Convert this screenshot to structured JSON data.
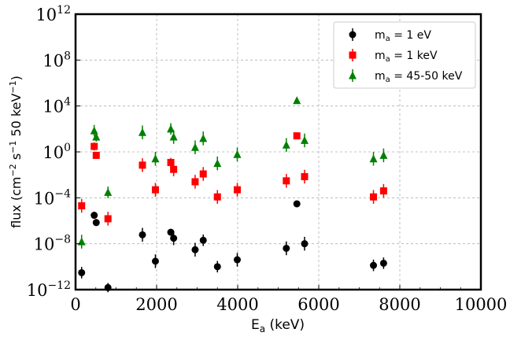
{
  "chart_data": {
    "type": "scatter",
    "title": "",
    "xlabel": "E_a (keV)",
    "ylabel": "flux (cm^-2 s^-1 50 keV^-1)",
    "x_scale": "linear",
    "y_scale": "log",
    "xlim": [
      0,
      10000
    ],
    "ylim": [
      1e-12,
      1000000000000.0
    ],
    "x_ticks": [
      "0",
      "2000",
      "4000",
      "6000",
      "8000",
      "10000"
    ],
    "y_ticks": [
      {
        "base": "10",
        "exp": "−12"
      },
      {
        "base": "10",
        "exp": "−8"
      },
      {
        "base": "10",
        "exp": "−4"
      },
      {
        "base": "10",
        "exp": "0"
      },
      {
        "base": "10",
        "exp": "4"
      },
      {
        "base": "10",
        "exp": "8"
      },
      {
        "base": "10",
        "exp": "12"
      }
    ],
    "grid": true,
    "legend_position": "top-right",
    "series": [
      {
        "name": "m_a = 1 eV",
        "label_main": "m",
        "label_sub": "a",
        "label_rest": " = 1 eV",
        "marker": "circle",
        "color": "#000000",
        "points": [
          {
            "x": 150,
            "y": 3e-11,
            "err_dex": 1.0
          },
          {
            "x": 460,
            "y": 3e-06,
            "err_dex": 0.6
          },
          {
            "x": 510,
            "y": 7e-07,
            "err_dex": 0.6
          },
          {
            "x": 800,
            "y": 1.5e-12,
            "err_dex": 0.8
          },
          {
            "x": 1650,
            "y": 6e-08,
            "err_dex": 1.2
          },
          {
            "x": 1970,
            "y": 3e-10,
            "err_dex": 1.2
          },
          {
            "x": 2350,
            "y": 1e-07,
            "err_dex": 0.6
          },
          {
            "x": 2420,
            "y": 3e-08,
            "err_dex": 1.2
          },
          {
            "x": 2950,
            "y": 3e-09,
            "err_dex": 1.2
          },
          {
            "x": 3150,
            "y": 2e-08,
            "err_dex": 1.0
          },
          {
            "x": 3500,
            "y": 1e-10,
            "err_dex": 1.0
          },
          {
            "x": 3990,
            "y": 4e-10,
            "err_dex": 1.2
          },
          {
            "x": 5200,
            "y": 4e-09,
            "err_dex": 1.2
          },
          {
            "x": 5460,
            "y": 3e-05,
            "err_dex": 0
          },
          {
            "x": 5650,
            "y": 1e-08,
            "err_dex": 1.2
          },
          {
            "x": 7350,
            "y": 1.3e-10,
            "err_dex": 1.0
          },
          {
            "x": 7600,
            "y": 2e-10,
            "err_dex": 1.0
          }
        ]
      },
      {
        "name": "m_a = 1 keV",
        "label_main": "m",
        "label_sub": "a",
        "label_rest": " = 1 keV",
        "marker": "square",
        "color": "#ff0000",
        "points": [
          {
            "x": 150,
            "y": 2e-05,
            "err_dex": 1.2
          },
          {
            "x": 460,
            "y": 3,
            "err_dex": 0.7
          },
          {
            "x": 510,
            "y": 0.5,
            "err_dex": 0.6
          },
          {
            "x": 800,
            "y": 1.5e-06,
            "err_dex": 1.2
          },
          {
            "x": 1650,
            "y": 0.07,
            "err_dex": 1.2
          },
          {
            "x": 1970,
            "y": 0.0005,
            "err_dex": 1.2
          },
          {
            "x": 2350,
            "y": 0.12,
            "err_dex": 0.8
          },
          {
            "x": 2420,
            "y": 0.03,
            "err_dex": 1.2
          },
          {
            "x": 2950,
            "y": 0.0025,
            "err_dex": 1.2
          },
          {
            "x": 3150,
            "y": 0.012,
            "err_dex": 1.2
          },
          {
            "x": 3500,
            "y": 0.00012,
            "err_dex": 1.2
          },
          {
            "x": 3990,
            "y": 0.0005,
            "err_dex": 1.2
          },
          {
            "x": 5200,
            "y": 0.003,
            "err_dex": 1.2
          },
          {
            "x": 5460,
            "y": 25,
            "err_dex": 0
          },
          {
            "x": 5650,
            "y": 0.007,
            "err_dex": 1.2
          },
          {
            "x": 7350,
            "y": 0.00012,
            "err_dex": 1.2
          },
          {
            "x": 7600,
            "y": 0.0004,
            "err_dex": 1.2
          }
        ]
      },
      {
        "name": "m_a = 45-50 keV",
        "label_main": "m",
        "label_sub": "a",
        "label_rest": " = 45-50 keV",
        "marker": "triangle",
        "color": "#008000",
        "points": [
          {
            "x": 150,
            "y": 1.5e-08,
            "err_dex": 1.2
          },
          {
            "x": 460,
            "y": 70,
            "err_dex": 1.0
          },
          {
            "x": 510,
            "y": 20,
            "err_dex": 0.8
          },
          {
            "x": 800,
            "y": 0.0003,
            "err_dex": 1.0
          },
          {
            "x": 1650,
            "y": 50,
            "err_dex": 1.2
          },
          {
            "x": 1970,
            "y": 0.25,
            "err_dex": 1.2
          },
          {
            "x": 2350,
            "y": 100,
            "err_dex": 1.0
          },
          {
            "x": 2420,
            "y": 20,
            "err_dex": 1.2
          },
          {
            "x": 2950,
            "y": 2.5,
            "err_dex": 1.2
          },
          {
            "x": 3150,
            "y": 15,
            "err_dex": 1.2
          },
          {
            "x": 3500,
            "y": 0.1,
            "err_dex": 1.2
          },
          {
            "x": 3990,
            "y": 0.6,
            "err_dex": 1.2
          },
          {
            "x": 5200,
            "y": 4,
            "err_dex": 1.2
          },
          {
            "x": 5460,
            "y": 30000.0,
            "err_dex": 0
          },
          {
            "x": 5650,
            "y": 10,
            "err_dex": 1.2
          },
          {
            "x": 7350,
            "y": 0.25,
            "err_dex": 1.2
          },
          {
            "x": 7600,
            "y": 0.5,
            "err_dex": 1.2
          }
        ]
      }
    ]
  }
}
